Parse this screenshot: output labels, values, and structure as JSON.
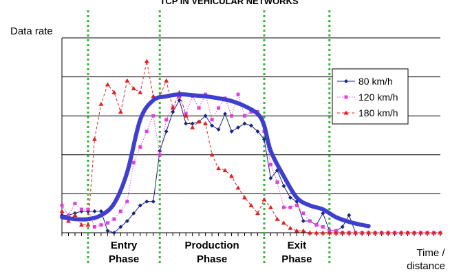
{
  "chart_data": {
    "type": "line",
    "title_cropped": "TCP IN VEHICULAR NETWORKS",
    "ylabel": "Data rate",
    "xlabel": [
      "Time /",
      "distance"
    ],
    "y_scale": "relative (no tick labels)",
    "ylim": [
      0,
      5
    ],
    "xlim": [
      0,
      58
    ],
    "grid": "horizontal",
    "legend_position": "right, inside plot area",
    "phases": [
      {
        "name": [
          "Entry",
          "Phase"
        ],
        "x_start": 4,
        "x_end": 15
      },
      {
        "name": [
          "Production",
          "Phase"
        ],
        "x_start": 15,
        "x_end": 31
      },
      {
        "name": [
          "Exit",
          "Phase"
        ],
        "x_start": 31,
        "x_end": 41
      }
    ],
    "series": [
      {
        "name": "80 km/h",
        "color": "#1a237e",
        "marker": "diamond",
        "line_style": "solid",
        "x": [
          0,
          1,
          2,
          3,
          4,
          5,
          6,
          7,
          8,
          9,
          10,
          11,
          12,
          13,
          14,
          15,
          16,
          17,
          18,
          19,
          20,
          21,
          22,
          23,
          24,
          25,
          26,
          27,
          28,
          29,
          30,
          31,
          32,
          33,
          34,
          35,
          36,
          37,
          38,
          39,
          40,
          41,
          42,
          43,
          44,
          45,
          46,
          47,
          48,
          49,
          50,
          51,
          52,
          53,
          54,
          55,
          56,
          57,
          58
        ],
        "values": [
          0.45,
          0.45,
          0.5,
          0.55,
          0.55,
          0.55,
          0.55,
          0.05,
          0,
          0.15,
          0.3,
          0.5,
          0.7,
          0.8,
          0.8,
          2.1,
          2.6,
          3.1,
          3.4,
          2.8,
          2.8,
          2.85,
          3.0,
          2.75,
          2.65,
          3.05,
          2.6,
          2.7,
          2.8,
          2.75,
          2.6,
          2.4,
          1.4,
          1.6,
          1.2,
          0.9,
          0.8,
          0.3,
          0.3,
          0.2,
          0.5,
          0.05,
          0.05,
          0.15,
          0.45,
          0,
          0,
          0,
          0,
          0,
          0,
          0,
          0,
          0,
          0,
          0,
          0,
          0,
          0
        ]
      },
      {
        "name": "120 km/h",
        "color": "#e040e0",
        "marker": "square",
        "line_style": "dotted",
        "x": [
          0,
          1,
          2,
          3,
          4,
          5,
          6,
          7,
          8,
          9,
          10,
          11,
          12,
          13,
          14,
          15,
          16,
          17,
          18,
          19,
          20,
          21,
          22,
          23,
          24,
          25,
          26,
          27,
          28,
          29,
          30,
          31,
          32,
          33,
          34,
          35,
          36,
          37,
          38,
          39,
          40,
          41,
          42,
          43,
          44,
          45,
          46,
          47,
          48,
          49,
          50,
          51,
          52,
          53,
          54,
          55,
          56,
          57,
          58
        ],
        "values": [
          0.7,
          0.45,
          0.75,
          0.6,
          0.6,
          0.15,
          0.2,
          0.25,
          0.35,
          0.55,
          0.8,
          1.8,
          2.2,
          2.6,
          3.0,
          2.0,
          2.9,
          3.2,
          3.5,
          3.05,
          3.5,
          3.2,
          3.55,
          2.9,
          3.2,
          3.45,
          3.0,
          3.55,
          3.0,
          3.1,
          3.1,
          2.6,
          1.75,
          1.3,
          0.65,
          0.65,
          0.7,
          0.5,
          0.3,
          0.2,
          0.15,
          0.05,
          0.05,
          0,
          0,
          0,
          0,
          0,
          0,
          0,
          0,
          0,
          0,
          0,
          0,
          0,
          0,
          0,
          0
        ]
      },
      {
        "name": "180 km/h",
        "color": "#e02020",
        "marker": "triangle",
        "line_style": "dashed",
        "x": [
          0,
          1,
          2,
          3,
          4,
          5,
          6,
          7,
          8,
          9,
          10,
          11,
          12,
          13,
          14,
          15,
          16,
          17,
          18,
          19,
          20,
          21,
          22,
          23,
          24,
          25,
          26,
          27,
          28,
          29,
          30,
          31,
          32,
          33,
          34,
          35,
          36,
          37,
          38,
          39,
          40,
          41,
          42,
          43,
          44,
          45,
          46,
          47,
          48,
          49,
          50,
          51,
          52,
          53,
          54,
          55,
          56,
          57,
          58
        ],
        "values": [
          0.55,
          0.3,
          0.45,
          0.2,
          0.2,
          2.4,
          3.3,
          3.8,
          3.6,
          3.1,
          3.9,
          3.7,
          3.6,
          4.4,
          3.5,
          3.5,
          3.9,
          3.2,
          3.6,
          3.0,
          2.7,
          2.85,
          2.8,
          2.0,
          1.65,
          1.6,
          1.45,
          1.15,
          0.9,
          0.7,
          0.5,
          0.85,
          0.65,
          0.35,
          0.25,
          0.12,
          0.05,
          0.05,
          0,
          0,
          0,
          0,
          0,
          0,
          0,
          0,
          0,
          0,
          0,
          0,
          0,
          0,
          0,
          0,
          0,
          0,
          0,
          0,
          0
        ]
      },
      {
        "name": "",
        "description": "trend curve (unlabeled)",
        "color": "#3f3fcf",
        "line_style": "thick",
        "x": [
          0,
          2,
          4,
          6,
          8,
          10,
          12,
          14,
          16,
          18,
          20,
          22,
          24,
          26,
          28,
          30,
          31,
          32,
          34,
          36,
          38,
          40,
          42,
          44,
          46,
          47
        ],
        "values": [
          0.4,
          0.35,
          0.35,
          0.45,
          0.75,
          1.55,
          2.9,
          3.4,
          3.5,
          3.55,
          3.53,
          3.5,
          3.45,
          3.38,
          3.25,
          3.05,
          2.75,
          2.1,
          1.45,
          0.9,
          0.7,
          0.6,
          0.4,
          0.28,
          0.2,
          0.17
        ]
      }
    ]
  }
}
